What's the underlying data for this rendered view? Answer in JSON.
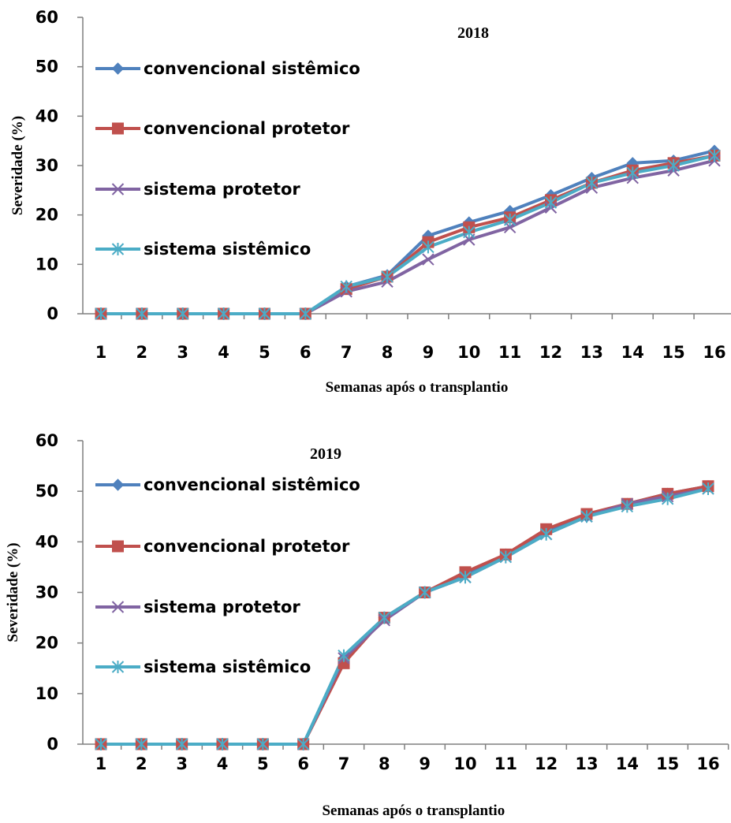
{
  "chart_data": [
    {
      "type": "line",
      "title": "2018",
      "xlabel": "Semanas após o transplantio",
      "ylabel": "Severidade (%)",
      "ylim": [
        0,
        60
      ],
      "yticks": [
        "0",
        "10",
        "20",
        "30",
        "40",
        "50",
        "60"
      ],
      "categories": [
        "1",
        "2",
        "3",
        "4",
        "5",
        "6",
        "7",
        "8",
        "9",
        "10",
        "11",
        "12",
        "13",
        "14",
        "15",
        "16"
      ],
      "grid": false,
      "legend_position": "left",
      "series": [
        {
          "name": "convencional sistêmico",
          "color": "#4f81bd",
          "marker": "diamond",
          "values": [
            0,
            0,
            0,
            0,
            0,
            0,
            5.5,
            7.8,
            15.8,
            18.5,
            20.8,
            24,
            27.5,
            30.5,
            31,
            33
          ]
        },
        {
          "name": "convencional protetor",
          "color": "#c0504d",
          "marker": "square",
          "values": [
            0,
            0,
            0,
            0,
            0,
            0,
            5,
            7.5,
            14.5,
            17.5,
            19.5,
            23,
            26.5,
            29,
            30.5,
            32
          ]
        },
        {
          "name": "sistema  protetor",
          "color": "#8064a2",
          "marker": "x",
          "values": [
            0,
            0,
            0,
            0,
            0,
            0,
            4.5,
            6.5,
            11,
            15,
            17.5,
            21.5,
            25.5,
            27.5,
            29,
            31
          ]
        },
        {
          "name": "sistema  sistêmico",
          "color": "#4bacc6",
          "marker": "star",
          "values": [
            0,
            0,
            0,
            0,
            0,
            0,
            5.5,
            7.5,
            13.5,
            16.5,
            19,
            22.5,
            26.5,
            28.5,
            30,
            32
          ]
        }
      ]
    },
    {
      "type": "line",
      "title": "2019",
      "xlabel": "Semanas após o transplantio",
      "ylabel": "Severidade (%)",
      "ylim": [
        0,
        60
      ],
      "yticks": [
        "0",
        "10",
        "20",
        "30",
        "40",
        "50",
        "60"
      ],
      "categories": [
        "1",
        "2",
        "3",
        "4",
        "5",
        "6",
        "7",
        "8",
        "9",
        "10",
        "11",
        "12",
        "13",
        "14",
        "15",
        "16"
      ],
      "grid": false,
      "legend_position": "left",
      "series": [
        {
          "name": "convencional sistêmico",
          "color": "#4f81bd",
          "marker": "diamond",
          "values": [
            0,
            0,
            0,
            0,
            0,
            0,
            17,
            25,
            30,
            33.5,
            37.5,
            42,
            45,
            47.5,
            49.5,
            51
          ]
        },
        {
          "name": "convencional protetor",
          "color": "#c0504d",
          "marker": "square",
          "values": [
            0,
            0,
            0,
            0,
            0,
            0,
            16,
            25,
            30,
            34,
            37.5,
            42.5,
            45.5,
            47.5,
            49.5,
            51
          ]
        },
        {
          "name": "sistema  protetor",
          "color": "#8064a2",
          "marker": "x",
          "values": [
            0,
            0,
            0,
            0,
            0,
            0,
            17,
            24.5,
            30,
            33,
            37,
            41.5,
            45,
            47.5,
            49,
            50.5
          ]
        },
        {
          "name": "sistema sistêmico",
          "color": "#4bacc6",
          "marker": "star",
          "values": [
            0,
            0,
            0,
            0,
            0,
            0,
            17.5,
            25,
            30,
            33,
            37,
            41.5,
            45,
            47,
            48.5,
            50.5
          ]
        }
      ]
    }
  ]
}
